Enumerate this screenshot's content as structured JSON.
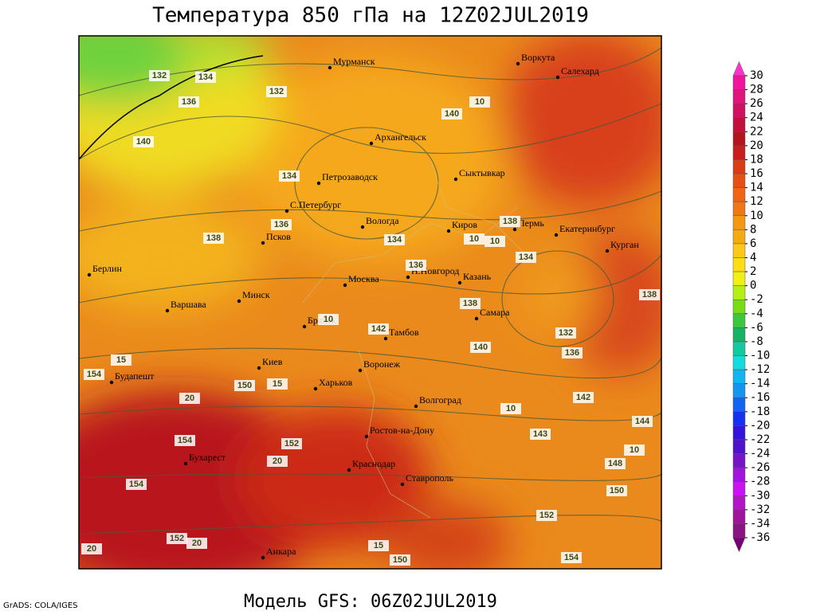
{
  "title": "Температура 850 гПа на 12Z02JUL2019",
  "footer": "Модель GFS: 06Z02JUL2019",
  "credit": "GrADS: COLA/IGES",
  "cities": [
    "Мурманск",
    "Воркута",
    "Салехард",
    "Архангельск",
    "Петрозаводск",
    "Сыктывкар",
    "С.Петербург",
    "Вологда",
    "Киров",
    "Пермь",
    "Екатеринбург",
    "Курган",
    "Псков",
    "Берлин",
    "Н.Новгород",
    "Москва",
    "Казань",
    "Минск",
    "Варшава",
    "Самара",
    "Брянск",
    "Тамбов",
    "Киев",
    "Воронеж",
    "Будапешт",
    "Харьков",
    "Волгоград",
    "Ростов-на-Дону",
    "Бухарест",
    "Краснодар",
    "Ставрополь",
    "Анкара"
  ],
  "contour_labels": [
    132,
    134,
    136,
    140,
    132,
    140,
    10,
    134,
    136,
    138,
    134,
    138,
    136,
    134,
    10,
    138,
    10,
    142,
    15,
    140,
    138,
    132,
    136,
    154,
    150,
    15,
    20,
    142,
    10,
    143,
    144,
    154,
    152,
    20,
    148,
    10,
    154,
    150,
    152,
    152,
    20,
    15,
    150,
    154,
    20,
    10
  ],
  "colorbar": {
    "levels": [
      30,
      28,
      26,
      24,
      22,
      20,
      18,
      16,
      14,
      12,
      10,
      8,
      6,
      4,
      2,
      0,
      -2,
      -4,
      -6,
      -8,
      -10,
      -12,
      -14,
      -16,
      -18,
      -20,
      -22,
      -24,
      -26,
      -28,
      -30,
      -32,
      -34,
      -36
    ],
    "colors": [
      "#ff33cc",
      "#f0149e",
      "#e0147a",
      "#d01060",
      "#c0103c",
      "#b4141e",
      "#c81e1e",
      "#dc3c14",
      "#e65014",
      "#f06414",
      "#f07814",
      "#f59614",
      "#f5aa14",
      "#ffc814",
      "#ffdc14",
      "#f0f014",
      "#b4f014",
      "#78dc14",
      "#3cc83c",
      "#14b464",
      "#14c8a0",
      "#14dcdc",
      "#14b4f0",
      "#1496f0",
      "#1464f0",
      "#1432f0",
      "#3214dc",
      "#5014c8",
      "#7814c8",
      "#a014dc",
      "#c814f0",
      "#b414c8",
      "#a0149b",
      "#8c1482",
      "#780078"
    ]
  }
}
